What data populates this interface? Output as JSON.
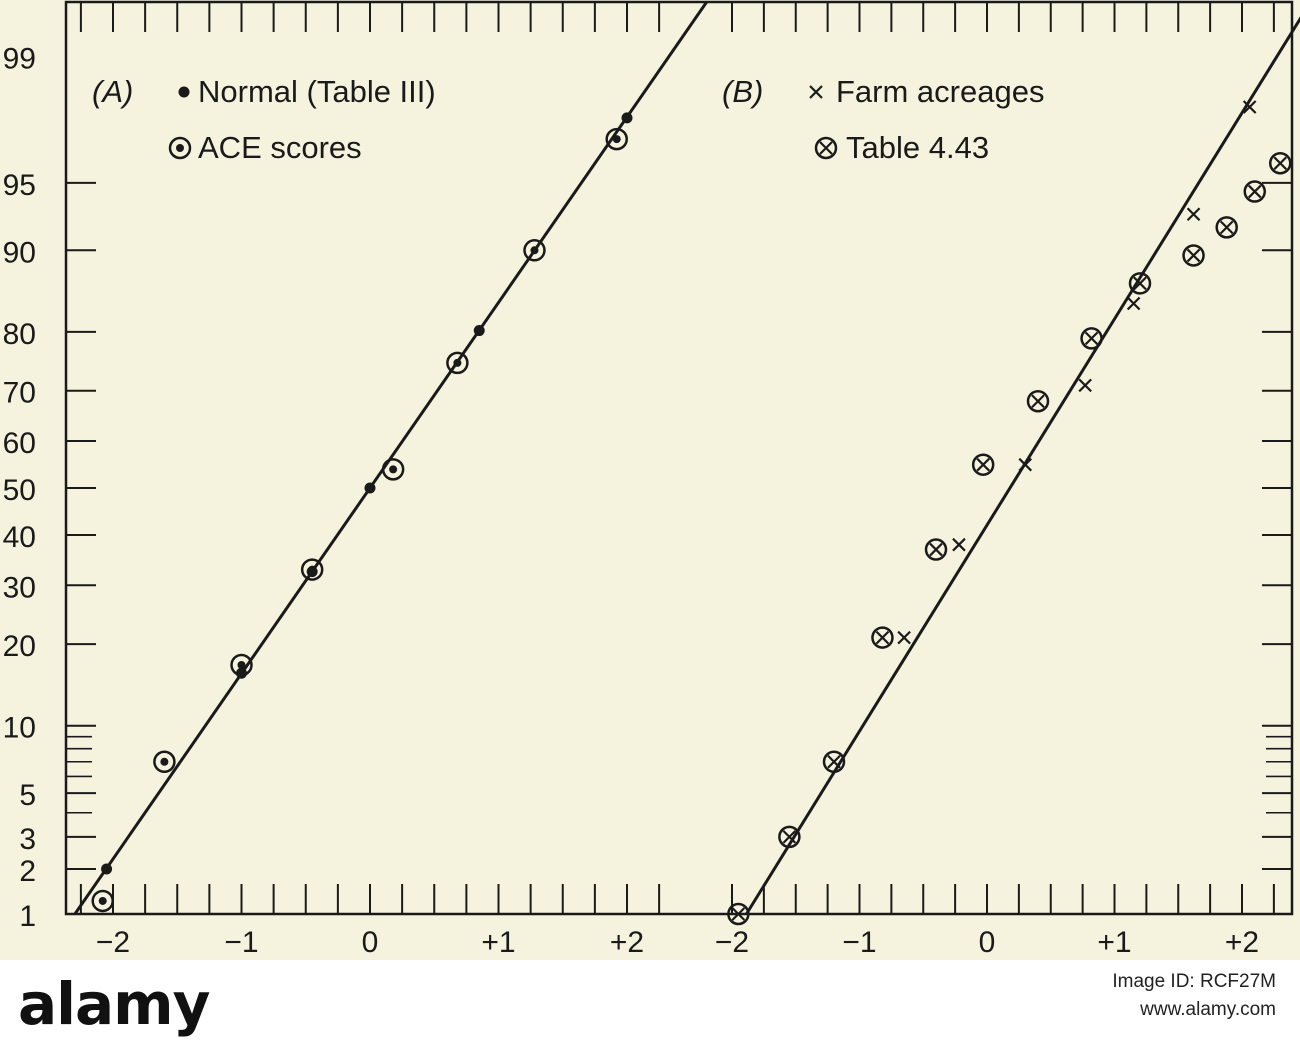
{
  "chart_data": [
    {
      "type": "scatter",
      "scale": "normal probability",
      "panel_label": "(A)",
      "legend": [
        {
          "marker": "filled-dot",
          "label": "Normal (Table III)"
        },
        {
          "marker": "dotted-circle",
          "label": "ACE scores"
        }
      ],
      "xlim": [
        -2.35,
        2.55
      ],
      "x_ticks": [
        "−2",
        "−1",
        "0",
        "+1",
        "+2"
      ],
      "x_tick_values": [
        -2,
        -1,
        0,
        1,
        2
      ],
      "y_ticks": [
        "1",
        "2",
        "3",
        "5",
        "10",
        "20",
        "30",
        "40",
        "50",
        "60",
        "70",
        "80",
        "90",
        "95",
        "99"
      ],
      "y_tick_values": [
        1,
        2,
        3,
        5,
        10,
        20,
        30,
        40,
        50,
        60,
        70,
        80,
        90,
        95,
        99
      ],
      "ylim": [
        1,
        99
      ],
      "fit_line": {
        "mean": 0,
        "sd": 1
      },
      "series": [
        {
          "name": "Normal (Table III)",
          "marker": "filled-dot",
          "points": [
            [
              -2.05,
              2.0
            ],
            [
              -1.0,
              15.9
            ],
            [
              -0.45,
              32.6
            ],
            [
              0.0,
              50.0
            ],
            [
              0.85,
              80.2
            ],
            [
              2.0,
              97.7
            ]
          ]
        },
        {
          "name": "ACE scores",
          "marker": "dotted-circle",
          "points": [
            [
              -2.08,
              1.3
            ],
            [
              -1.6,
              7.0
            ],
            [
              -1.0,
              17.0
            ],
            [
              -0.45,
              33.0
            ],
            [
              0.18,
              54.0
            ],
            [
              0.68,
              75.0
            ],
            [
              1.28,
              90.0
            ],
            [
              1.92,
              97.0
            ]
          ]
        }
      ]
    },
    {
      "type": "scatter",
      "scale": "normal probability",
      "panel_label": "(B)",
      "legend": [
        {
          "marker": "cross",
          "label": "Farm acreages"
        },
        {
          "marker": "circled-x",
          "label": "Table 4.43"
        }
      ],
      "xlim": [
        -2.35,
        2.5
      ],
      "x_ticks": [
        "−2",
        "−1",
        "0",
        "+1",
        "+2"
      ],
      "x_tick_values": [
        -2,
        -1,
        0,
        1,
        2
      ],
      "fit_line": {
        "mean": 0.18,
        "sd": 0.9
      },
      "series": [
        {
          "name": "Farm acreages",
          "marker": "cross",
          "points": [
            [
              -0.65,
              21.0
            ],
            [
              -0.22,
              38.0
            ],
            [
              0.3,
              55.0
            ],
            [
              0.77,
              71.0
            ],
            [
              1.15,
              84.0
            ],
            [
              1.62,
              93.0
            ],
            [
              2.06,
              98.0
            ]
          ]
        },
        {
          "name": "Table 4.43",
          "marker": "circled-x",
          "points": [
            [
              -1.95,
              1.0
            ],
            [
              -1.55,
              3.0
            ],
            [
              -1.2,
              7.0
            ],
            [
              -0.82,
              21.0
            ],
            [
              -0.4,
              37.0
            ],
            [
              -0.03,
              55.0
            ],
            [
              0.4,
              68.0
            ],
            [
              0.82,
              79.0
            ],
            [
              1.2,
              86.5
            ],
            [
              1.62,
              89.5
            ],
            [
              1.88,
              92.0
            ],
            [
              2.1,
              94.5
            ],
            [
              2.3,
              96.0
            ]
          ]
        }
      ]
    }
  ],
  "watermark": {
    "logo": "alamy",
    "image_id": "Image ID: RCF27M",
    "url": "www.alamy.com"
  }
}
